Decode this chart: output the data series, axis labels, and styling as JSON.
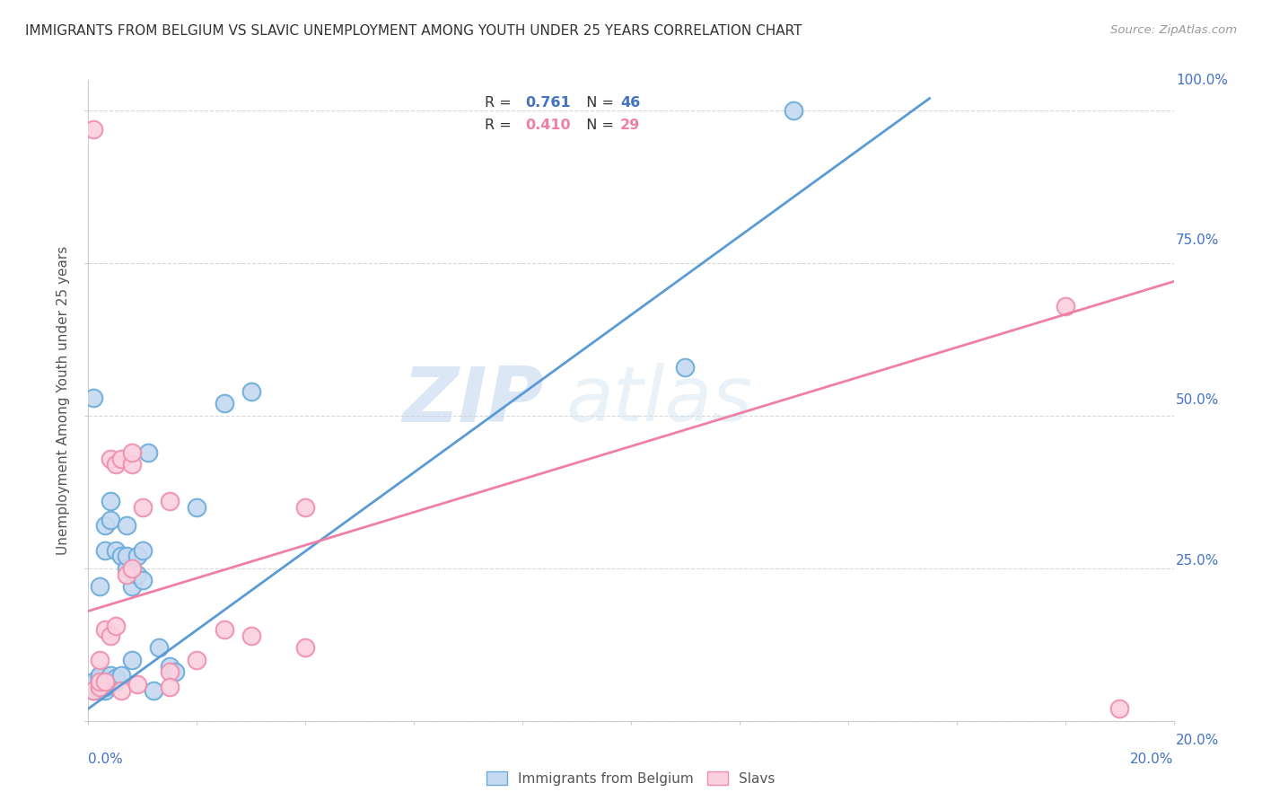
{
  "title": "IMMIGRANTS FROM BELGIUM VS SLAVIC UNEMPLOYMENT AMONG YOUTH UNDER 25 YEARS CORRELATION CHART",
  "source": "Source: ZipAtlas.com",
  "ylabel": "Unemployment Among Youth under 25 years",
  "legend_blue_r": "0.761",
  "legend_blue_n": "46",
  "legend_pink_r": "0.410",
  "legend_pink_n": "29",
  "blue_scatter_x": [
    0.001,
    0.001,
    0.001,
    0.001,
    0.002,
    0.002,
    0.002,
    0.002,
    0.002,
    0.002,
    0.002,
    0.003,
    0.003,
    0.003,
    0.003,
    0.003,
    0.003,
    0.004,
    0.004,
    0.004,
    0.004,
    0.004,
    0.005,
    0.005,
    0.005,
    0.006,
    0.006,
    0.007,
    0.007,
    0.007,
    0.008,
    0.008,
    0.009,
    0.009,
    0.01,
    0.01,
    0.011,
    0.012,
    0.013,
    0.015,
    0.016,
    0.02,
    0.025,
    0.03,
    0.11,
    0.13
  ],
  "blue_scatter_y": [
    0.05,
    0.06,
    0.065,
    0.53,
    0.05,
    0.055,
    0.06,
    0.065,
    0.07,
    0.075,
    0.22,
    0.05,
    0.055,
    0.06,
    0.065,
    0.28,
    0.32,
    0.06,
    0.065,
    0.075,
    0.33,
    0.36,
    0.065,
    0.07,
    0.28,
    0.075,
    0.27,
    0.25,
    0.27,
    0.32,
    0.1,
    0.22,
    0.24,
    0.27,
    0.23,
    0.28,
    0.44,
    0.05,
    0.12,
    0.09,
    0.08,
    0.35,
    0.52,
    0.54,
    0.58,
    1.0
  ],
  "pink_scatter_x": [
    0.001,
    0.001,
    0.002,
    0.002,
    0.002,
    0.003,
    0.003,
    0.004,
    0.004,
    0.005,
    0.005,
    0.006,
    0.006,
    0.007,
    0.008,
    0.008,
    0.008,
    0.009,
    0.01,
    0.015,
    0.015,
    0.015,
    0.02,
    0.025,
    0.03,
    0.04,
    0.04,
    0.18,
    0.19
  ],
  "pink_scatter_y": [
    0.05,
    0.97,
    0.055,
    0.065,
    0.1,
    0.065,
    0.15,
    0.14,
    0.43,
    0.155,
    0.42,
    0.05,
    0.43,
    0.24,
    0.25,
    0.42,
    0.44,
    0.06,
    0.35,
    0.08,
    0.36,
    0.055,
    0.1,
    0.15,
    0.14,
    0.12,
    0.35,
    0.68,
    0.02
  ],
  "watermark_zip": "ZIP",
  "watermark_atlas": "atlas",
  "xlim": [
    0.0,
    0.2
  ],
  "ylim": [
    0.0,
    1.05
  ],
  "blue_regline_x": [
    0.0,
    0.155
  ],
  "blue_regline_y": [
    0.02,
    1.02
  ],
  "pink_regline_x": [
    0.0,
    0.2
  ],
  "pink_regline_y": [
    0.18,
    0.72
  ]
}
